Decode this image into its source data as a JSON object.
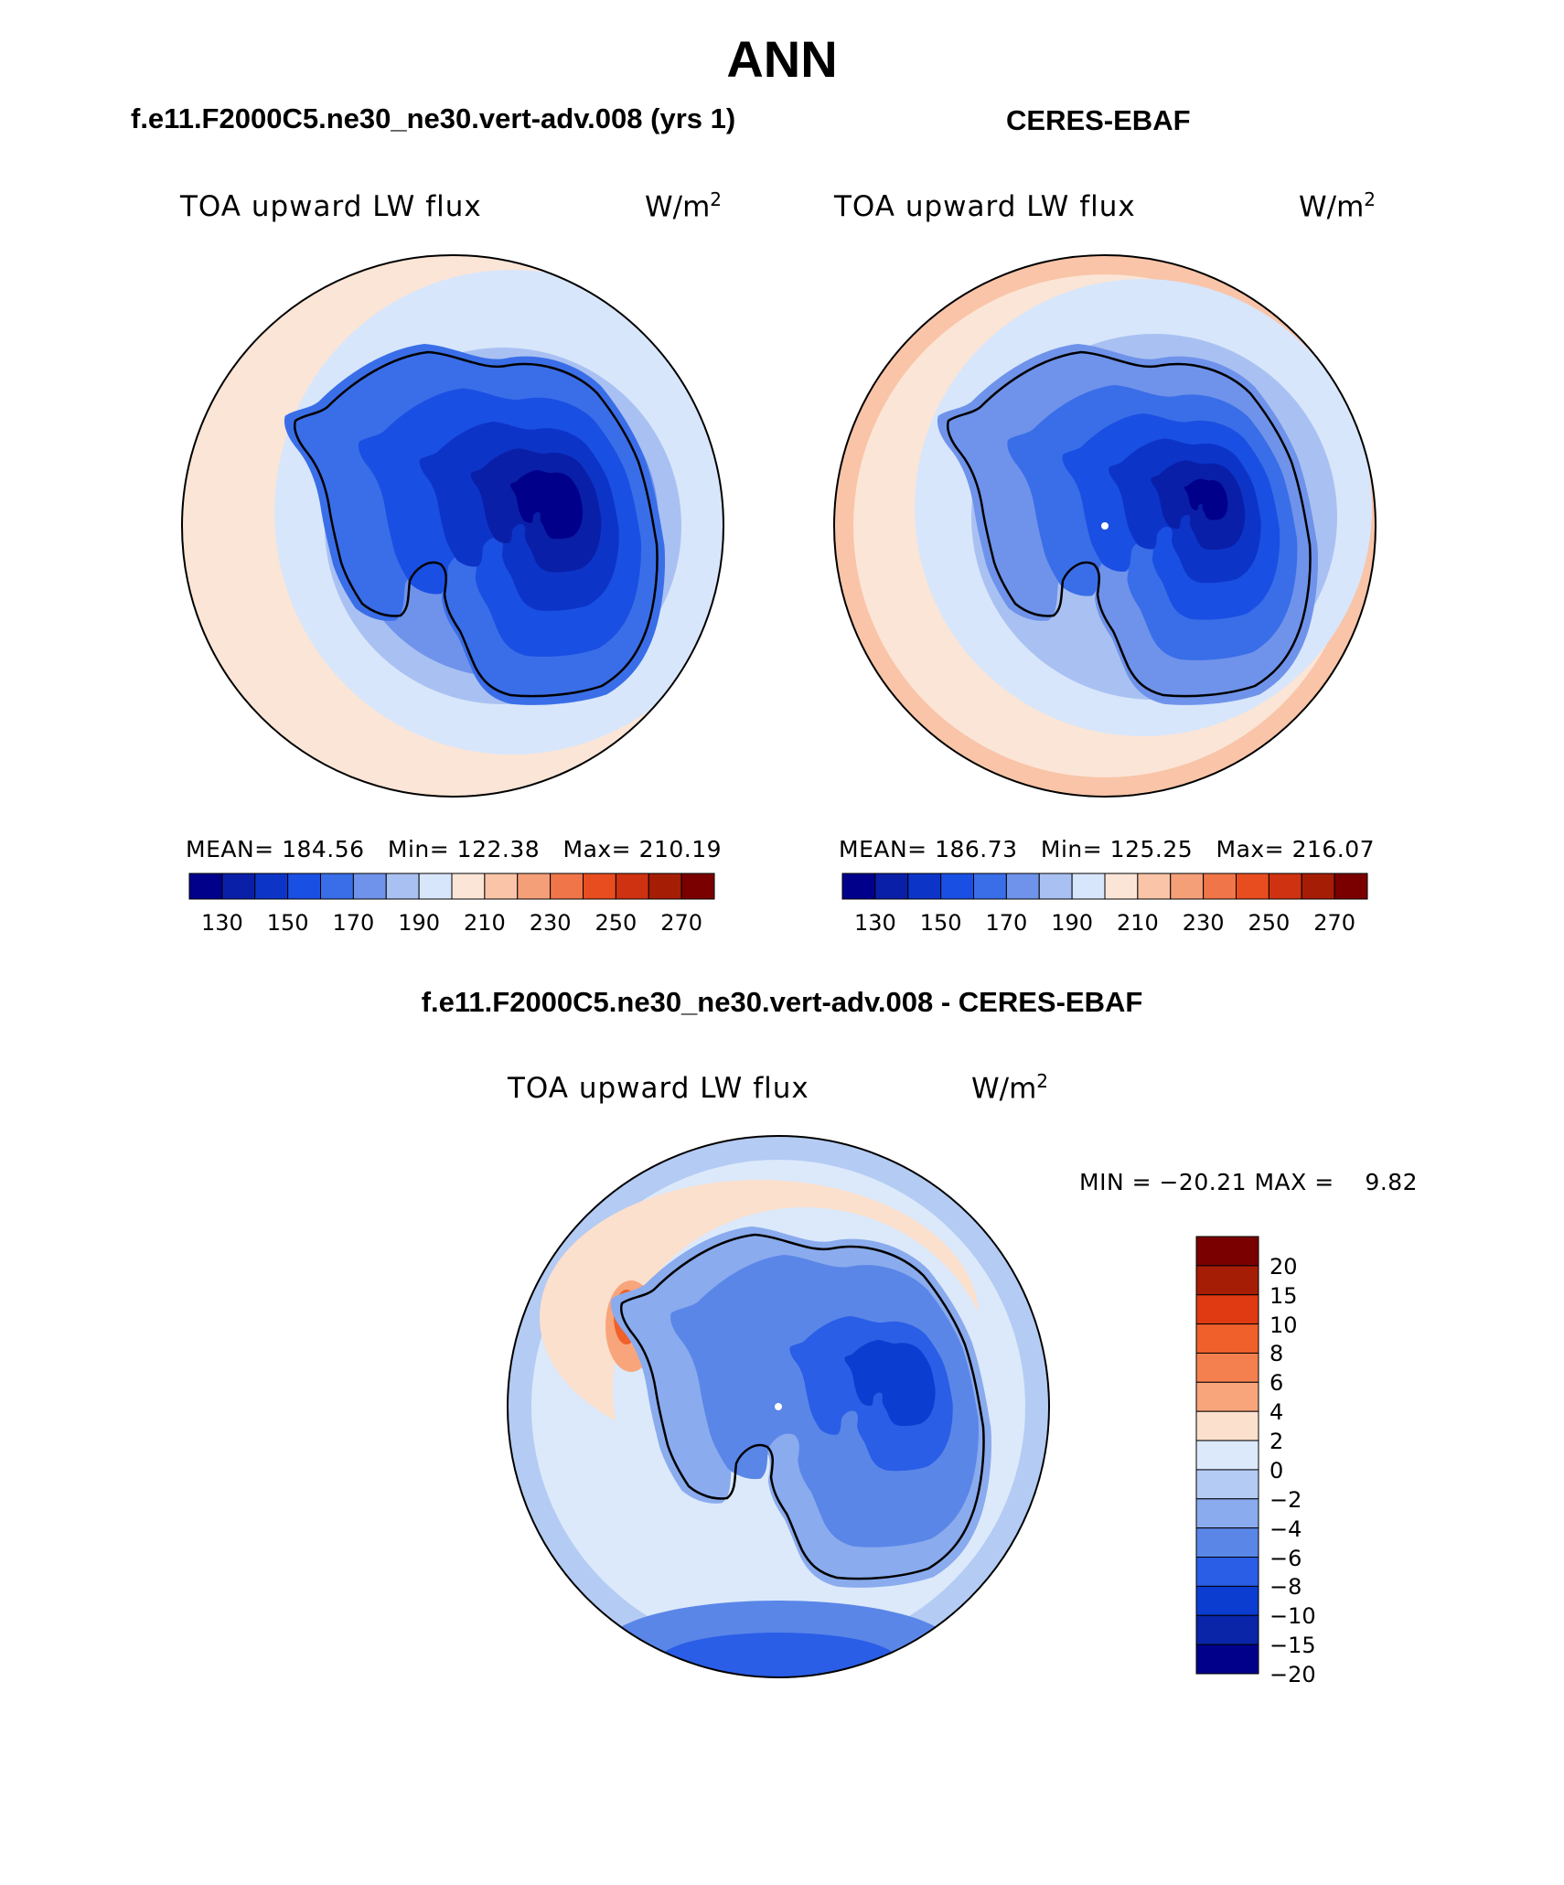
{
  "main_title": "ANN",
  "panels": [
    {
      "case_title": "f.e11.F2000C5.ne30_ne30.vert-adv.008 (yrs 1)",
      "field": "TOA upward LW flux",
      "units": "W/m",
      "units_exp": "2",
      "mean_label": "MEAN=",
      "mean": "184.56",
      "min_label": "Min=",
      "min": "122.38",
      "max_label": "Max=",
      "max": "210.19"
    },
    {
      "case_title": "CERES-EBAF",
      "field": "TOA upward LW flux",
      "units": "W/m",
      "units_exp": "2",
      "mean_label": "MEAN=",
      "mean": "186.73",
      "min_label": "Min=",
      "min": "125.25",
      "max_label": "Max=",
      "max": "216.07"
    }
  ],
  "abs_colorbar": {
    "colors": [
      "#00008b",
      "#0a1fa8",
      "#0c35c8",
      "#1a4fe3",
      "#3a6ee8",
      "#6f93ea",
      "#a9c1f2",
      "#d7e6fb",
      "#fbe5d6",
      "#f9c4a8",
      "#f59f78",
      "#f0764a",
      "#e84d1f",
      "#cf3210",
      "#a61d06",
      "#7a0000"
    ],
    "ticks": [
      "130",
      "150",
      "170",
      "190",
      "210",
      "230",
      "250",
      "270"
    ]
  },
  "diff": {
    "title": "f.e11.F2000C5.ne30_ne30.vert-adv.008 - CERES-EBAF",
    "field": "TOA upward LW flux",
    "units": "W/m",
    "units_exp": "2",
    "minmax": "MIN = −20.21 MAX =    9.82"
  },
  "diff_colorbar": {
    "colors": [
      "#7a0000",
      "#a61d06",
      "#e03a12",
      "#f0602b",
      "#f5804f",
      "#f8a57c",
      "#fbe0cd",
      "#dbe9fb",
      "#b4cbf3",
      "#8aabed",
      "#5a86e8",
      "#2a5ee6",
      "#0b3dd0",
      "#0a25a8",
      "#00008b"
    ],
    "ticks": [
      "20",
      "15",
      "10",
      "8",
      "6",
      "4",
      "2",
      "0",
      "−2",
      "−4",
      "−6",
      "−8",
      "−10",
      "−15",
      "−20"
    ]
  }
}
